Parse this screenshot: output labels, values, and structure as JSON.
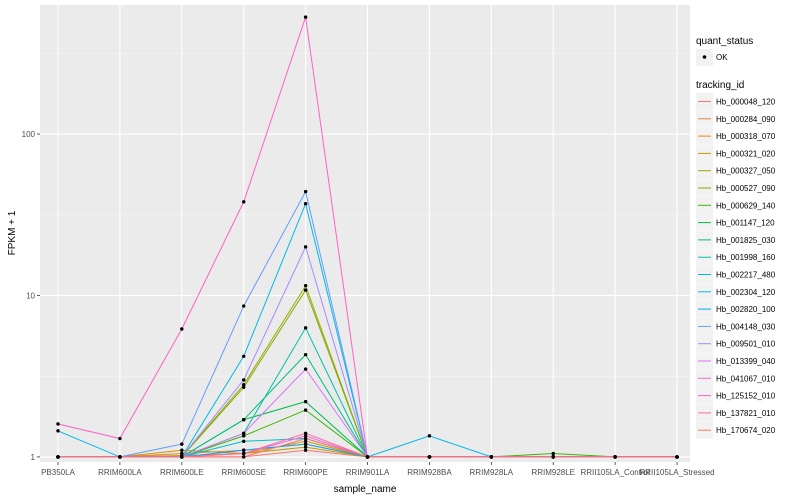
{
  "chart_data": {
    "type": "line",
    "xlabel": "sample_name",
    "ylabel": "FPKM + 1",
    "y_scale": "log10",
    "ylim": [
      0.93,
      630
    ],
    "grid": true,
    "legend_position": "right",
    "y_ticks": [
      {
        "value": 1,
        "label": "1"
      },
      {
        "value": 10,
        "label": "10"
      },
      {
        "value": 100,
        "label": "100"
      }
    ],
    "categories": [
      "PB350LA",
      "RRIM600LA",
      "RRIM600LE",
      "RRIM600SE",
      "RRIM600PE",
      "RRIM901LA",
      "RRIM928BA",
      "RRIM928LA",
      "RRIM928LE",
      "RRII105LA_Control",
      "RRII105LA_Stressed"
    ],
    "point_legend": {
      "title": "quant_status",
      "items": [
        {
          "label": "OK",
          "color": "#000000"
        }
      ]
    },
    "series_legend_title": "tracking_id",
    "series": [
      {
        "name": "Hb_000048_120",
        "color": "#F8766D",
        "values": [
          1,
          1,
          1,
          1,
          1.1,
          1,
          1,
          1,
          1,
          1,
          1
        ]
      },
      {
        "name": "Hb_000284_090",
        "color": "#EA8331",
        "values": [
          1,
          1,
          1.05,
          1.1,
          1.2,
          1,
          1,
          1,
          1,
          1,
          1
        ]
      },
      {
        "name": "Hb_000318_070",
        "color": "#D89000",
        "values": [
          1,
          1,
          1.1,
          1.05,
          1.25,
          1,
          1,
          1,
          1,
          1,
          1
        ]
      },
      {
        "name": "Hb_000321_020",
        "color": "#C09B00",
        "values": [
          1,
          1,
          1.02,
          1.05,
          1.15,
          1,
          1,
          1,
          1,
          1,
          1
        ]
      },
      {
        "name": "Hb_000327_050",
        "color": "#A3A500",
        "values": [
          1,
          1,
          1,
          2.8,
          11.5,
          1,
          1,
          1,
          1,
          1,
          1
        ]
      },
      {
        "name": "Hb_000527_090",
        "color": "#7CAE00",
        "values": [
          1,
          1,
          1,
          2.7,
          10.8,
          1,
          1,
          1,
          1,
          1,
          1
        ]
      },
      {
        "name": "Hb_000629_140",
        "color": "#39B600",
        "values": [
          1,
          1,
          1,
          1.35,
          1.95,
          1,
          1,
          1,
          1.05,
          1,
          1
        ]
      },
      {
        "name": "Hb_001147_120",
        "color": "#00BB4E",
        "values": [
          1,
          1,
          1,
          1.7,
          2.2,
          1,
          1,
          1,
          1,
          1,
          1
        ]
      },
      {
        "name": "Hb_001825_030",
        "color": "#00BF7D",
        "values": [
          1,
          1,
          1,
          1.7,
          4.3,
          1,
          1,
          1,
          1,
          1,
          1
        ]
      },
      {
        "name": "Hb_001998_160",
        "color": "#00C1A3",
        "values": [
          1,
          1,
          1,
          1.4,
          6.3,
          1,
          1,
          1,
          1,
          1,
          1
        ]
      },
      {
        "name": "Hb_002217_480",
        "color": "#00BFC4",
        "values": [
          1,
          1,
          1,
          1.25,
          1.3,
          1,
          1,
          1,
          1,
          1,
          1
        ]
      },
      {
        "name": "Hb_002304_120",
        "color": "#00B8E7",
        "values": [
          1.45,
          1,
          1,
          4.2,
          37,
          1,
          1.35,
          1,
          1,
          1,
          1
        ]
      },
      {
        "name": "Hb_002820_100",
        "color": "#00A9FF",
        "values": [
          1,
          1,
          1,
          1.1,
          1.2,
          1,
          1,
          1,
          1,
          1,
          1
        ]
      },
      {
        "name": "Hb_004148_030",
        "color": "#619CFF",
        "values": [
          1,
          1,
          1.2,
          8.6,
          44,
          1,
          1,
          1,
          1,
          1,
          1
        ]
      },
      {
        "name": "Hb_009501_010",
        "color": "#A58AFF",
        "values": [
          1,
          1,
          1,
          3.0,
          20,
          1,
          1,
          1,
          1,
          1,
          1
        ]
      },
      {
        "name": "Hb_013399_040",
        "color": "#DB72FB",
        "values": [
          1,
          1,
          1,
          1.4,
          3.5,
          1,
          1,
          1,
          1,
          1,
          1
        ]
      },
      {
        "name": "Hb_041067_010",
        "color": "#F564E3",
        "values": [
          1,
          1,
          1,
          1.05,
          1.35,
          1,
          1,
          1,
          1,
          1,
          1
        ]
      },
      {
        "name": "Hb_125152_010",
        "color": "#FF61C3",
        "values": [
          1.6,
          1.3,
          6.2,
          38,
          530,
          1,
          1,
          1,
          1,
          1,
          1
        ]
      },
      {
        "name": "Hb_137821_010",
        "color": "#FF699C",
        "values": [
          1,
          1,
          1,
          1.05,
          1.4,
          1,
          1,
          1,
          1,
          1,
          1
        ]
      },
      {
        "name": "Hb_170674_020",
        "color": "#F8766D",
        "values": [
          1,
          1,
          1,
          1,
          1.3,
          1,
          1,
          1,
          1,
          1,
          1
        ]
      }
    ]
  }
}
